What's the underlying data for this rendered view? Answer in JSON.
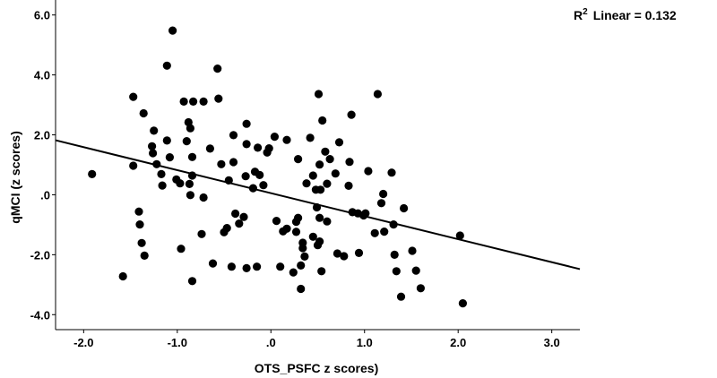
{
  "chart_data": {
    "type": "scatter",
    "title": "",
    "xlabel": "OTS_PSFC z scores)",
    "ylabel": "qMCI (z scores)",
    "xlim": [
      -2.3,
      3.3
    ],
    "ylim": [
      -4.5,
      6.5
    ],
    "x_ticks": [
      -2.0,
      -1.0,
      0.0,
      1.0,
      2.0,
      3.0
    ],
    "x_tick_labels": [
      "-2.0",
      "-1.0",
      ".0",
      "1.0",
      "2.0",
      "3.0"
    ],
    "y_ticks": [
      -4.0,
      -2.0,
      0.0,
      2.0,
      4.0,
      6.0
    ],
    "y_tick_labels": [
      "-4.0",
      "-2.0",
      ".0",
      "2.0",
      "4.0",
      "6.0"
    ],
    "grid": false,
    "annotation": {
      "r2_base": "R",
      "r2_sup": "2",
      "r2_text": "Linear = 0.132"
    },
    "fit_line": {
      "x0": -2.3,
      "y0": 1.82,
      "x1": 3.3,
      "y1": -2.48
    },
    "points": [
      [
        -1.91,
        0.69
      ],
      [
        -1.58,
        -2.72
      ],
      [
        -1.47,
        3.27
      ],
      [
        -1.47,
        0.97
      ],
      [
        -1.41,
        -0.56
      ],
      [
        -1.4,
        -0.99
      ],
      [
        -1.38,
        -1.61
      ],
      [
        -1.36,
        2.72
      ],
      [
        -1.35,
        -2.03
      ],
      [
        -1.27,
        1.62
      ],
      [
        -1.26,
        1.39
      ],
      [
        -1.25,
        2.14
      ],
      [
        -1.22,
        1.02
      ],
      [
        -1.17,
        0.69
      ],
      [
        -1.16,
        0.31
      ],
      [
        -1.11,
        4.31
      ],
      [
        -1.11,
        1.81
      ],
      [
        -1.08,
        1.25
      ],
      [
        -1.05,
        5.48
      ],
      [
        -1.01,
        0.51
      ],
      [
        -0.97,
        0.38
      ],
      [
        -0.96,
        -1.8
      ],
      [
        -0.93,
        3.11
      ],
      [
        -0.9,
        1.79
      ],
      [
        -0.88,
        2.42
      ],
      [
        -0.87,
        0.36
      ],
      [
        -0.86,
        2.22
      ],
      [
        -0.86,
        -0.01
      ],
      [
        -0.84,
        1.26
      ],
      [
        -0.84,
        0.64
      ],
      [
        -0.84,
        -2.88
      ],
      [
        -0.83,
        3.11
      ],
      [
        -0.74,
        -1.31
      ],
      [
        -0.72,
        -0.09
      ],
      [
        -0.72,
        3.11
      ],
      [
        -0.65,
        1.54
      ],
      [
        -0.62,
        -2.29
      ],
      [
        -0.57,
        4.21
      ],
      [
        -0.56,
        3.21
      ],
      [
        -0.53,
        1.02
      ],
      [
        -0.5,
        -1.25
      ],
      [
        -0.47,
        -1.11
      ],
      [
        -0.45,
        0.48
      ],
      [
        -0.42,
        -2.4
      ],
      [
        -0.4,
        1.09
      ],
      [
        -0.4,
        1.99
      ],
      [
        -0.38,
        -0.63
      ],
      [
        -0.34,
        -0.96
      ],
      [
        -0.29,
        -0.74
      ],
      [
        -0.27,
        0.62
      ],
      [
        -0.26,
        -2.45
      ],
      [
        -0.26,
        1.69
      ],
      [
        -0.26,
        2.37
      ],
      [
        -0.19,
        0.22
      ],
      [
        -0.17,
        0.77
      ],
      [
        -0.15,
        -2.4
      ],
      [
        -0.14,
        1.57
      ],
      [
        -0.12,
        0.66
      ],
      [
        -0.08,
        0.32
      ],
      [
        -0.04,
        1.41
      ],
      [
        -0.02,
        1.55
      ],
      [
        0.04,
        1.94
      ],
      [
        0.06,
        -0.87
      ],
      [
        0.1,
        -2.4
      ],
      [
        0.13,
        -1.22
      ],
      [
        0.17,
        1.83
      ],
      [
        0.17,
        -1.13
      ],
      [
        0.24,
        -2.59
      ],
      [
        0.27,
        -0.9
      ],
      [
        0.27,
        -1.24
      ],
      [
        0.29,
        -0.77
      ],
      [
        0.29,
        1.19
      ],
      [
        0.32,
        -2.36
      ],
      [
        0.32,
        -3.14
      ],
      [
        0.34,
        -1.78
      ],
      [
        0.34,
        -1.6
      ],
      [
        0.36,
        -2.06
      ],
      [
        0.38,
        0.38
      ],
      [
        0.42,
        1.9
      ],
      [
        0.45,
        -1.4
      ],
      [
        0.45,
        0.64
      ],
      [
        0.48,
        0.17
      ],
      [
        0.49,
        -0.42
      ],
      [
        0.5,
        -1.68
      ],
      [
        0.51,
        3.36
      ],
      [
        0.52,
        1.01
      ],
      [
        0.52,
        -1.56
      ],
      [
        0.52,
        -0.77
      ],
      [
        0.53,
        0.17
      ],
      [
        0.54,
        -2.55
      ],
      [
        0.55,
        2.48
      ],
      [
        0.58,
        1.44
      ],
      [
        0.6,
        -0.89
      ],
      [
        0.6,
        0.37
      ],
      [
        0.63,
        1.19
      ],
      [
        0.69,
        0.71
      ],
      [
        0.71,
        -1.96
      ],
      [
        0.73,
        1.75
      ],
      [
        0.78,
        -2.05
      ],
      [
        0.83,
        0.3
      ],
      [
        0.84,
        1.1
      ],
      [
        0.86,
        2.67
      ],
      [
        0.87,
        -0.58
      ],
      [
        0.93,
        -0.62
      ],
      [
        0.94,
        -1.94
      ],
      [
        0.99,
        -0.69
      ],
      [
        1.01,
        -0.62
      ],
      [
        1.04,
        0.79
      ],
      [
        1.11,
        -1.28
      ],
      [
        1.14,
        3.36
      ],
      [
        1.18,
        -0.28
      ],
      [
        1.2,
        0.03
      ],
      [
        1.21,
        -1.23
      ],
      [
        1.29,
        0.74
      ],
      [
        1.31,
        -0.99
      ],
      [
        1.32,
        -2.0
      ],
      [
        1.34,
        -2.55
      ],
      [
        1.39,
        -3.4
      ],
      [
        1.42,
        -0.45
      ],
      [
        1.51,
        -1.87
      ],
      [
        1.55,
        -2.53
      ],
      [
        1.6,
        -3.12
      ],
      [
        2.02,
        -1.36
      ],
      [
        2.05,
        -3.62
      ]
    ]
  }
}
